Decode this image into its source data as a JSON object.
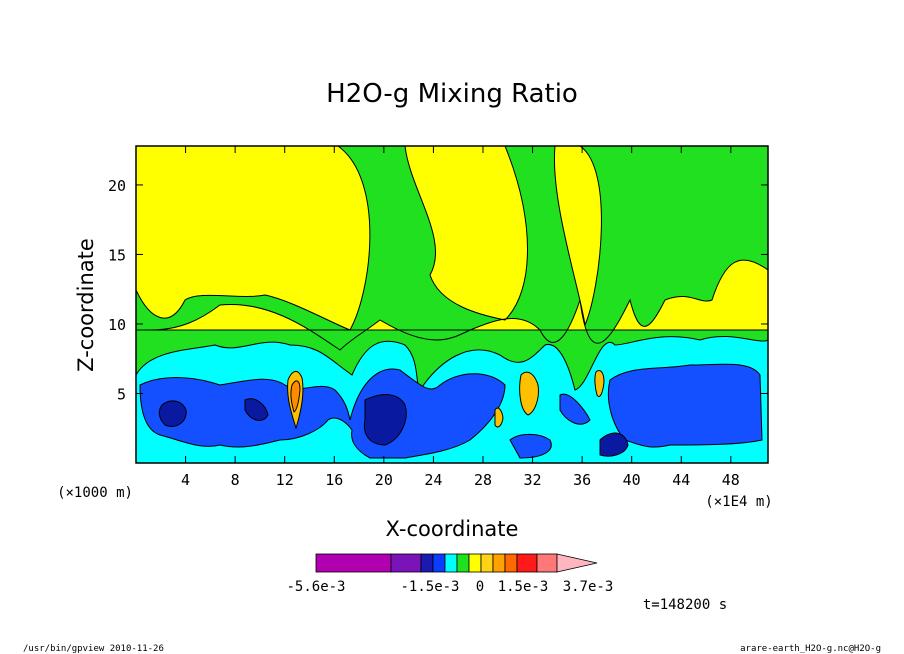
{
  "chart_data": {
    "type": "heatmap",
    "title": "H2O-g Mixing Ratio",
    "xlabel": "X-coordinate",
    "ylabel": "Z-coordinate",
    "x_unit_left": "(×1000 m)",
    "x_unit_right": "(×1E4 m)",
    "xlim": [
      0,
      51
    ],
    "ylim": [
      0,
      22.8
    ],
    "x_ticks": [
      "4",
      "8",
      "12",
      "16",
      "20",
      "24",
      "28",
      "32",
      "36",
      "40",
      "44",
      "48"
    ],
    "x_tick_values": [
      4,
      8,
      12,
      16,
      20,
      24,
      28,
      32,
      36,
      40,
      44,
      48
    ],
    "y_ticks": [
      "5",
      "10",
      "15",
      "20"
    ],
    "y_tick_values": [
      5,
      10,
      15,
      20
    ],
    "colorbar": {
      "labels": [
        "-5.6e-3",
        "-1.5e-3",
        "0",
        "1.5e-3",
        "3.7e-3"
      ],
      "colors": [
        "#b000b0",
        "#7a14b8",
        "#1a1ab0",
        "#0b3cff",
        "#00ffff",
        "#1fe21f",
        "#ffff00",
        "#ffd21a",
        "#ffa200",
        "#ff6a00",
        "#ff1a1a",
        "#ff7878",
        "#ffb6c1"
      ]
    },
    "field_colors": {
      "yellow": "#ffff00",
      "green": "#20e020",
      "cyan": "#00ffff",
      "blue": "#1450ff",
      "darkblue": "#0a1aa0",
      "orange": "#ffc000",
      "frame": "#000000"
    }
  },
  "annotations": {
    "time": "t=148200 s",
    "footer_left": "/usr/bin/gpview  2010-11-26",
    "footer_right": "arare-earth_H2O-g.nc@H2O-g"
  }
}
